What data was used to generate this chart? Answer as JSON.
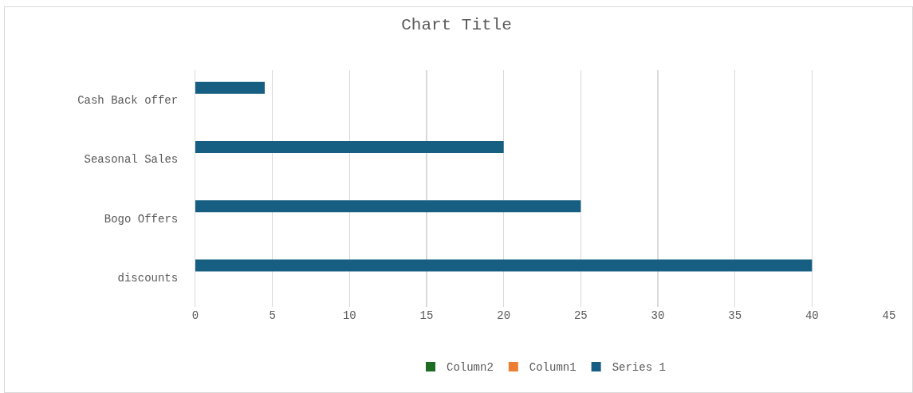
{
  "chart_data": {
    "type": "bar",
    "orientation": "horizontal",
    "title": "Chart Title",
    "categories": [
      "Cash Back offer",
      "Seasonal Sales",
      "Bogo Offers",
      "discounts"
    ],
    "series": [
      {
        "name": "Series 1",
        "color": "#175f82",
        "values": [
          4.5,
          20,
          25,
          40
        ]
      },
      {
        "name": "Column1",
        "color": "#ed7d31",
        "values": [
          null,
          null,
          null,
          null
        ]
      },
      {
        "name": "Column2",
        "color": "#1e6b23",
        "values": [
          null,
          null,
          null,
          null
        ]
      }
    ],
    "xlim": [
      0,
      45
    ],
    "xticks": [
      0,
      5,
      10,
      15,
      20,
      25,
      30,
      35,
      40,
      45
    ],
    "grid": "x",
    "legend": "bottom"
  }
}
